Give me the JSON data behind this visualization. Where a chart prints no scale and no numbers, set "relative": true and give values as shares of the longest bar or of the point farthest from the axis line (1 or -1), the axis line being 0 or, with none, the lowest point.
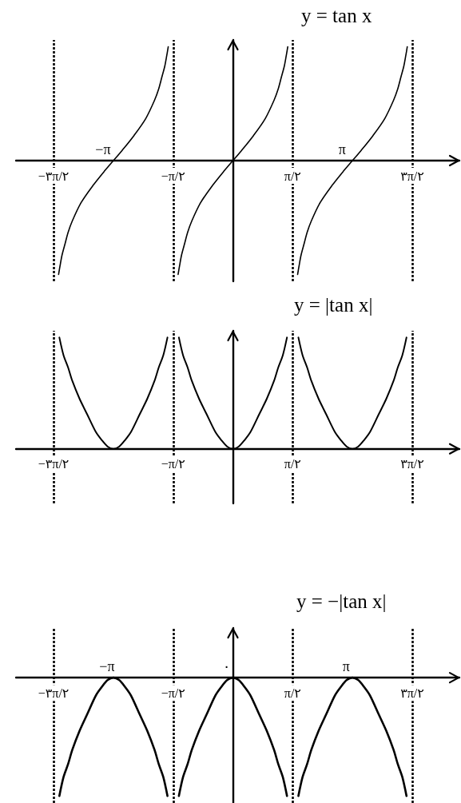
{
  "chart_data": [
    {
      "type": "line",
      "title": "y = tan x",
      "relative": true,
      "marker": "none",
      "line_style": "solid",
      "xlim": [
        -5.7,
        5.95
      ],
      "xticks": [
        {
          "value": -4.712,
          "label": "−۳π/۲"
        },
        {
          "value": -1.571,
          "label": "−π/۲"
        },
        {
          "value": 1.571,
          "label": "π/۲"
        },
        {
          "value": 4.712,
          "label": "۳π/۲"
        }
      ],
      "ref_lines": [
        {
          "axis": "x",
          "value": -4.712,
          "color": "#000000",
          "line_style": "dotted"
        },
        {
          "axis": "x",
          "value": -1.571,
          "color": "#000000",
          "line_style": "dotted"
        },
        {
          "axis": "x",
          "value": 1.571,
          "color": "#000000",
          "line_style": "dotted"
        },
        {
          "axis": "x",
          "value": 4.712,
          "color": "#000000",
          "line_style": "dotted"
        }
      ],
      "annotations": [
        {
          "text": "−π",
          "x": -3.142,
          "y": 0
        },
        {
          "text": "π",
          "x": 3.142,
          "y": 0
        }
      ],
      "series": [
        {
          "color": "#000000",
          "x": [
            -4.58,
            -4.54,
            -4.49,
            -4.41,
            -4.33,
            -4.22,
            -3.99,
            -3.68,
            -3.37,
            -3.14,
            -2.91,
            -2.6,
            -2.29,
            -2.06,
            -1.95,
            -1.87,
            -1.79,
            -1.74,
            -1.7,
            -1.57,
            -1.44,
            -1.4,
            -1.35,
            -1.27,
            -1.19,
            -1.08,
            -0.85,
            -0.54,
            -0.23,
            0,
            0.23,
            0.54,
            0.85,
            1.08,
            1.19,
            1.27,
            1.35,
            1.4,
            1.44,
            1.57,
            1.7,
            1.74,
            1.79,
            1.87,
            1.95,
            2.06,
            2.29,
            2.6,
            2.91,
            3.14,
            3.37,
            3.68,
            3.99,
            4.22,
            4.33,
            4.41,
            4.49,
            4.54,
            4.58
          ],
          "values": [
            -1.0,
            -0.92,
            -0.83,
            -0.73,
            -0.63,
            -0.53,
            -0.37,
            -0.22,
            -0.09,
            0,
            0.09,
            0.22,
            0.37,
            0.53,
            0.63,
            0.73,
            0.83,
            0.92,
            1.0,
            null,
            -1.0,
            -0.92,
            -0.83,
            -0.73,
            -0.63,
            -0.53,
            -0.37,
            -0.22,
            -0.09,
            0,
            0.09,
            0.22,
            0.37,
            0.53,
            0.63,
            0.73,
            0.83,
            0.92,
            1.0,
            null,
            -1.0,
            -0.92,
            -0.83,
            -0.73,
            -0.63,
            -0.53,
            -0.37,
            -0.22,
            -0.09,
            0,
            0.09,
            0.22,
            0.37,
            0.53,
            0.63,
            0.73,
            0.83,
            0.92,
            1.0
          ]
        }
      ]
    },
    {
      "type": "line",
      "title": "y = |tan x|",
      "relative": true,
      "marker": "none",
      "line_style": "solid",
      "xlim": [
        -5.7,
        5.95
      ],
      "xticks": [
        {
          "value": -4.712,
          "label": "−۳π/۲"
        },
        {
          "value": -1.571,
          "label": "−π/۲"
        },
        {
          "value": 1.571,
          "label": "π/۲"
        },
        {
          "value": 4.712,
          "label": "۳π/۲"
        }
      ],
      "ref_lines": [
        {
          "axis": "x",
          "value": -4.712,
          "color": "#000000",
          "line_style": "dotted"
        },
        {
          "axis": "x",
          "value": -1.571,
          "color": "#000000",
          "line_style": "dotted"
        },
        {
          "axis": "x",
          "value": 1.571,
          "color": "#000000",
          "line_style": "dotted"
        },
        {
          "axis": "x",
          "value": 4.712,
          "color": "#000000",
          "line_style": "dotted"
        }
      ],
      "series": [
        {
          "color": "#000000",
          "x": [
            -4.56,
            -4.45,
            -4.33,
            -4.22,
            -4.03,
            -3.83,
            -3.6,
            -3.45,
            -3.29,
            -3.14,
            -2.99,
            -2.83,
            -2.68,
            -2.45,
            -2.25,
            -2.06,
            -1.95,
            -1.83,
            -1.72,
            -1.57,
            -1.42,
            -1.31,
            -1.19,
            -1.08,
            -0.89,
            -0.69,
            -0.46,
            -0.31,
            -0.15,
            0,
            0.15,
            0.31,
            0.46,
            0.69,
            0.89,
            1.08,
            1.19,
            1.31,
            1.42,
            1.57,
            1.72,
            1.83,
            1.95,
            2.06,
            2.25,
            2.45,
            2.68,
            2.83,
            2.99,
            3.14,
            3.29,
            3.45,
            3.6,
            3.83,
            4.03,
            4.22,
            4.33,
            4.45,
            4.56
          ],
          "values": [
            1.0,
            0.84,
            0.73,
            0.61,
            0.45,
            0.31,
            0.15,
            0.08,
            0.02,
            0,
            0.02,
            0.08,
            0.15,
            0.31,
            0.45,
            0.61,
            0.73,
            0.84,
            1.0,
            null,
            1.0,
            0.84,
            0.73,
            0.61,
            0.45,
            0.31,
            0.15,
            0.08,
            0.02,
            0,
            0.02,
            0.08,
            0.15,
            0.31,
            0.45,
            0.61,
            0.73,
            0.84,
            1.0,
            null,
            1.0,
            0.84,
            0.73,
            0.61,
            0.45,
            0.31,
            0.15,
            0.08,
            0.02,
            0,
            0.02,
            0.08,
            0.15,
            0.31,
            0.45,
            0.61,
            0.73,
            0.84,
            1.0
          ]
        }
      ]
    },
    {
      "type": "line",
      "title": "y = −|tan x|",
      "relative": true,
      "marker": "none",
      "line_style": "solid",
      "xlim": [
        -5.7,
        5.95
      ],
      "xticks": [
        {
          "value": -4.712,
          "label": "−۳π/۲"
        },
        {
          "value": -1.571,
          "label": "−π/۲"
        },
        {
          "value": 1.571,
          "label": "π/۲"
        },
        {
          "value": 4.712,
          "label": "۳π/۲"
        }
      ],
      "ref_lines": [
        {
          "axis": "x",
          "value": -4.712,
          "color": "#000000",
          "line_style": "dotted"
        },
        {
          "axis": "x",
          "value": -1.571,
          "color": "#000000",
          "line_style": "dotted"
        },
        {
          "axis": "x",
          "value": 1.571,
          "color": "#000000",
          "line_style": "dotted"
        },
        {
          "axis": "x",
          "value": 4.712,
          "color": "#000000",
          "line_style": "dotted"
        }
      ],
      "annotations": [
        {
          "text": "−π",
          "x": -3.142,
          "y": 0
        },
        {
          "text": "۰",
          "x": 0,
          "y": 0
        },
        {
          "text": "π",
          "x": 3.142,
          "y": 0
        }
      ],
      "series": [
        {
          "color": "#000000",
          "x": [
            -4.56,
            -4.45,
            -4.33,
            -4.22,
            -4.03,
            -3.83,
            -3.6,
            -3.45,
            -3.29,
            -3.14,
            -2.99,
            -2.83,
            -2.68,
            -2.45,
            -2.25,
            -2.06,
            -1.95,
            -1.83,
            -1.72,
            -1.57,
            -1.42,
            -1.31,
            -1.19,
            -1.08,
            -0.89,
            -0.69,
            -0.46,
            -0.31,
            -0.15,
            0,
            0.15,
            0.31,
            0.46,
            0.69,
            0.89,
            1.08,
            1.19,
            1.31,
            1.42,
            1.57,
            1.72,
            1.83,
            1.95,
            2.06,
            2.25,
            2.45,
            2.68,
            2.83,
            2.99,
            3.14,
            3.29,
            3.45,
            3.6,
            3.83,
            4.03,
            4.22,
            4.33,
            4.45,
            4.56
          ],
          "values": [
            -1.0,
            -0.84,
            -0.73,
            -0.61,
            -0.45,
            -0.31,
            -0.15,
            -0.08,
            -0.02,
            0,
            -0.02,
            -0.08,
            -0.15,
            -0.31,
            -0.45,
            -0.61,
            -0.73,
            -0.84,
            -1.0,
            null,
            -1.0,
            -0.84,
            -0.73,
            -0.61,
            -0.45,
            -0.31,
            -0.15,
            -0.08,
            -0.02,
            0,
            -0.02,
            -0.08,
            -0.15,
            -0.31,
            -0.45,
            -0.61,
            -0.73,
            -0.84,
            -1.0,
            null,
            -1.0,
            -0.84,
            -0.73,
            -0.61,
            -0.45,
            -0.31,
            -0.15,
            -0.08,
            -0.02,
            0,
            -0.02,
            -0.08,
            -0.15,
            -0.31,
            -0.45,
            -0.61,
            -0.73,
            -0.84,
            -1.0
          ]
        }
      ]
    }
  ]
}
